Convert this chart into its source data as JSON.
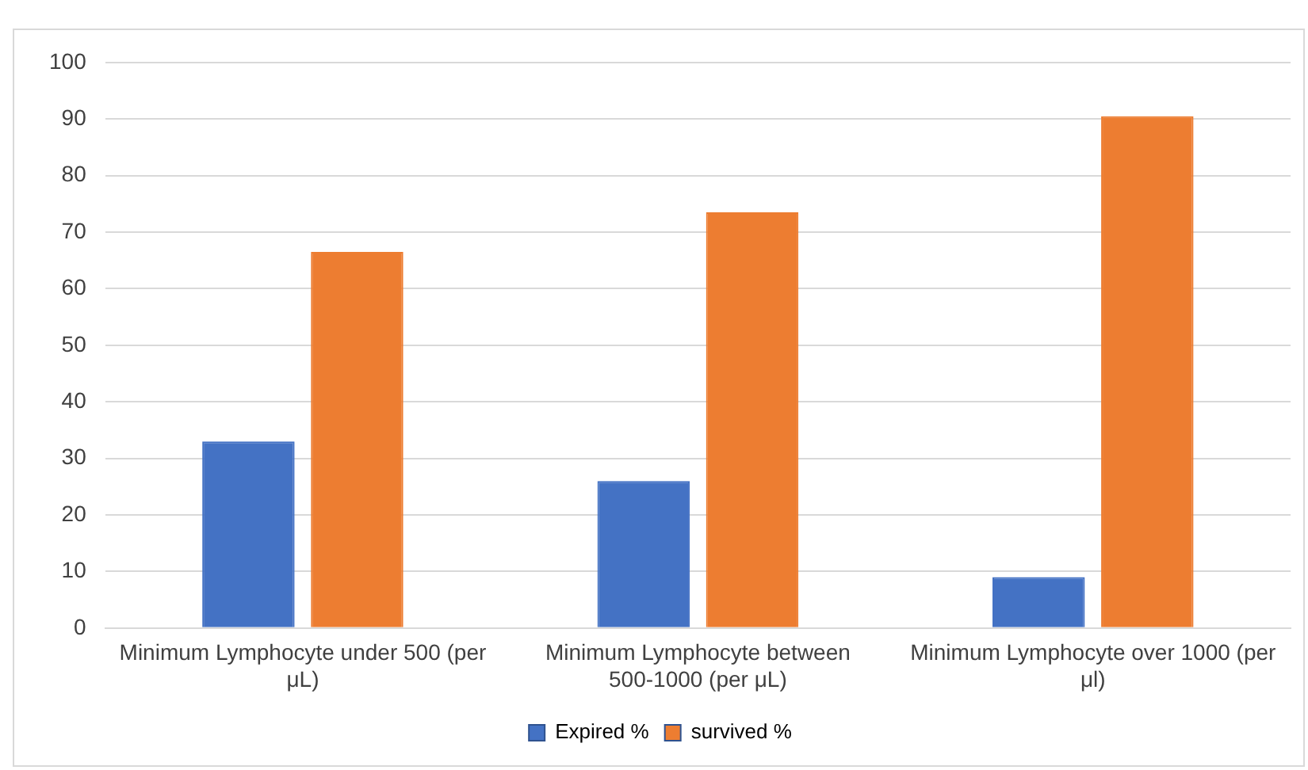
{
  "chart_data": {
    "type": "bar",
    "categories": [
      "Minimum Lymphocyte under 500 (per μL)",
      "Minimum Lymphocyte between 500-1000 (per μL)",
      "Minimum Lymphocyte over 1000 (per μl)"
    ],
    "series": [
      {
        "name": "Expired %",
        "color": "#4472c4",
        "values": [
          33,
          26,
          9
        ]
      },
      {
        "name": "survived %",
        "color": "#ed7d31",
        "values": [
          66.5,
          73.5,
          90.5
        ]
      }
    ],
    "ylim": [
      0,
      100
    ],
    "yticks": [
      0,
      10,
      20,
      30,
      40,
      50,
      60,
      70,
      80,
      90,
      100
    ],
    "grid": "y",
    "legend": "bottom"
  }
}
